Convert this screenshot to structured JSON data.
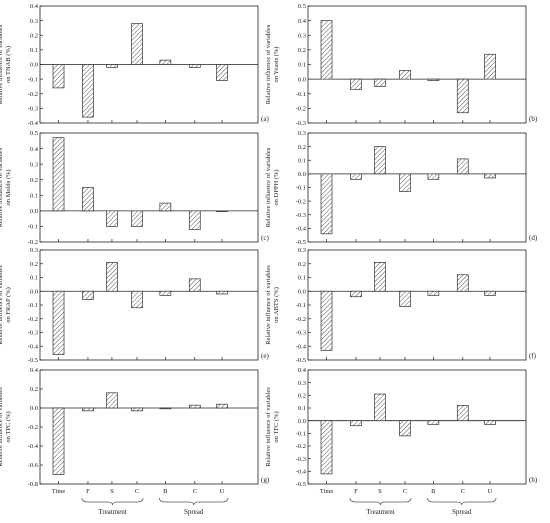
{
  "chart_data": [
    {
      "type": "bar",
      "panel": "(a)",
      "ylabel": [
        "Relative influence of variables",
        "on TNAB (%)"
      ],
      "categories": [
        "Time",
        "F",
        "S",
        "C",
        "B",
        "C",
        "U"
      ],
      "values": [
        -0.16,
        -0.36,
        -0.02,
        0.28,
        0.03,
        -0.02,
        -0.11
      ],
      "ylim": [
        -0.4,
        0.4
      ],
      "yticks": [
        -0.4,
        -0.3,
        -0.2,
        -0.1,
        0.0,
        0.1,
        0.2,
        0.3,
        0.4
      ]
    },
    {
      "type": "bar",
      "panel": "(b)",
      "ylabel": [
        "Relative influence of variables",
        "on Yeasts (%)"
      ],
      "categories": [
        "Time",
        "F",
        "S",
        "C",
        "B",
        "C",
        "U"
      ],
      "values": [
        0.4,
        -0.07,
        -0.05,
        0.06,
        -0.01,
        -0.23,
        0.17
      ],
      "ylim": [
        -0.3,
        0.5
      ],
      "yticks": [
        -0.3,
        -0.2,
        -0.1,
        0.0,
        0.1,
        0.2,
        0.3,
        0.4,
        0.5
      ]
    },
    {
      "type": "bar",
      "panel": "(c)",
      "ylabel": [
        "Relative influence of variables",
        "on Molds (%)"
      ],
      "categories": [
        "Time",
        "F",
        "S",
        "C",
        "B",
        "C",
        "U"
      ],
      "values": [
        0.47,
        0.15,
        -0.1,
        -0.1,
        0.05,
        -0.12,
        0.0
      ],
      "ylim": [
        -0.2,
        0.5
      ],
      "yticks": [
        -0.2,
        -0.1,
        0.0,
        0.1,
        0.2,
        0.3,
        0.4,
        0.5
      ]
    },
    {
      "type": "bar",
      "panel": "(d)",
      "ylabel": [
        "Relative influence of variables",
        "on DPPH (%)"
      ],
      "categories": [
        "Time",
        "F",
        "S",
        "C",
        "B",
        "C",
        "U"
      ],
      "values": [
        -0.44,
        -0.04,
        0.2,
        -0.13,
        -0.04,
        0.11,
        -0.03
      ],
      "ylim": [
        -0.5,
        0.3
      ],
      "yticks": [
        -0.5,
        -0.4,
        -0.3,
        -0.2,
        -0.1,
        0.0,
        0.1,
        0.2,
        0.3
      ]
    },
    {
      "type": "bar",
      "panel": "(e)",
      "ylabel": [
        "Relative influence of variables",
        "on FRAP (%)"
      ],
      "categories": [
        "Time",
        "F",
        "S",
        "C",
        "B",
        "C",
        "U"
      ],
      "values": [
        -0.46,
        -0.06,
        0.21,
        -0.12,
        -0.03,
        0.09,
        -0.02
      ],
      "ylim": [
        -0.5,
        0.3
      ],
      "yticks": [
        -0.5,
        -0.4,
        -0.3,
        -0.2,
        -0.1,
        0.0,
        0.1,
        0.2,
        0.3
      ]
    },
    {
      "type": "bar",
      "panel": "(f)",
      "ylabel": [
        "Relative influence of variables",
        "on ABTS (%)"
      ],
      "categories": [
        "Time",
        "F",
        "S",
        "C",
        "B",
        "C",
        "U"
      ],
      "values": [
        -0.43,
        -0.04,
        0.21,
        -0.11,
        -0.03,
        0.12,
        -0.03
      ],
      "ylim": [
        -0.5,
        0.3
      ],
      "yticks": [
        -0.5,
        -0.4,
        -0.3,
        -0.2,
        -0.1,
        0.0,
        0.1,
        0.2,
        0.3
      ]
    },
    {
      "type": "bar",
      "panel": "(g)",
      "ylabel": [
        "Relative influence of variables",
        "on TPC (%)"
      ],
      "categories": [
        "Time",
        "F",
        "S",
        "C",
        "B",
        "C",
        "U"
      ],
      "values": [
        -0.7,
        -0.03,
        0.16,
        -0.03,
        0.0,
        0.03,
        0.04
      ],
      "ylim": [
        -0.8,
        0.4
      ],
      "yticks": [
        -0.8,
        -0.6,
        -0.4,
        -0.2,
        0.0,
        0.2,
        0.4
      ]
    },
    {
      "type": "bar",
      "panel": "(h)",
      "ylabel": [
        "Relative influence of variables",
        "on TFC (%)"
      ],
      "categories": [
        "Time",
        "F",
        "S",
        "C",
        "B",
        "C",
        "U"
      ],
      "values": [
        -0.42,
        -0.04,
        0.21,
        -0.12,
        -0.03,
        0.12,
        -0.03
      ],
      "ylim": [
        -0.5,
        0.4
      ],
      "yticks": [
        -0.5,
        -0.4,
        -0.3,
        -0.2,
        -0.1,
        0.0,
        0.1,
        0.2,
        0.3,
        0.4
      ]
    }
  ],
  "groups": [
    {
      "label": "Treatment",
      "categories": [
        "F",
        "S",
        "C"
      ]
    },
    {
      "label": "Spread",
      "categories": [
        "B",
        "C",
        "U"
      ]
    }
  ],
  "colors": {
    "axis": "#222222",
    "bar_stroke": "#333333",
    "hatch": "#444444",
    "bar_fill": "#ffffff"
  }
}
